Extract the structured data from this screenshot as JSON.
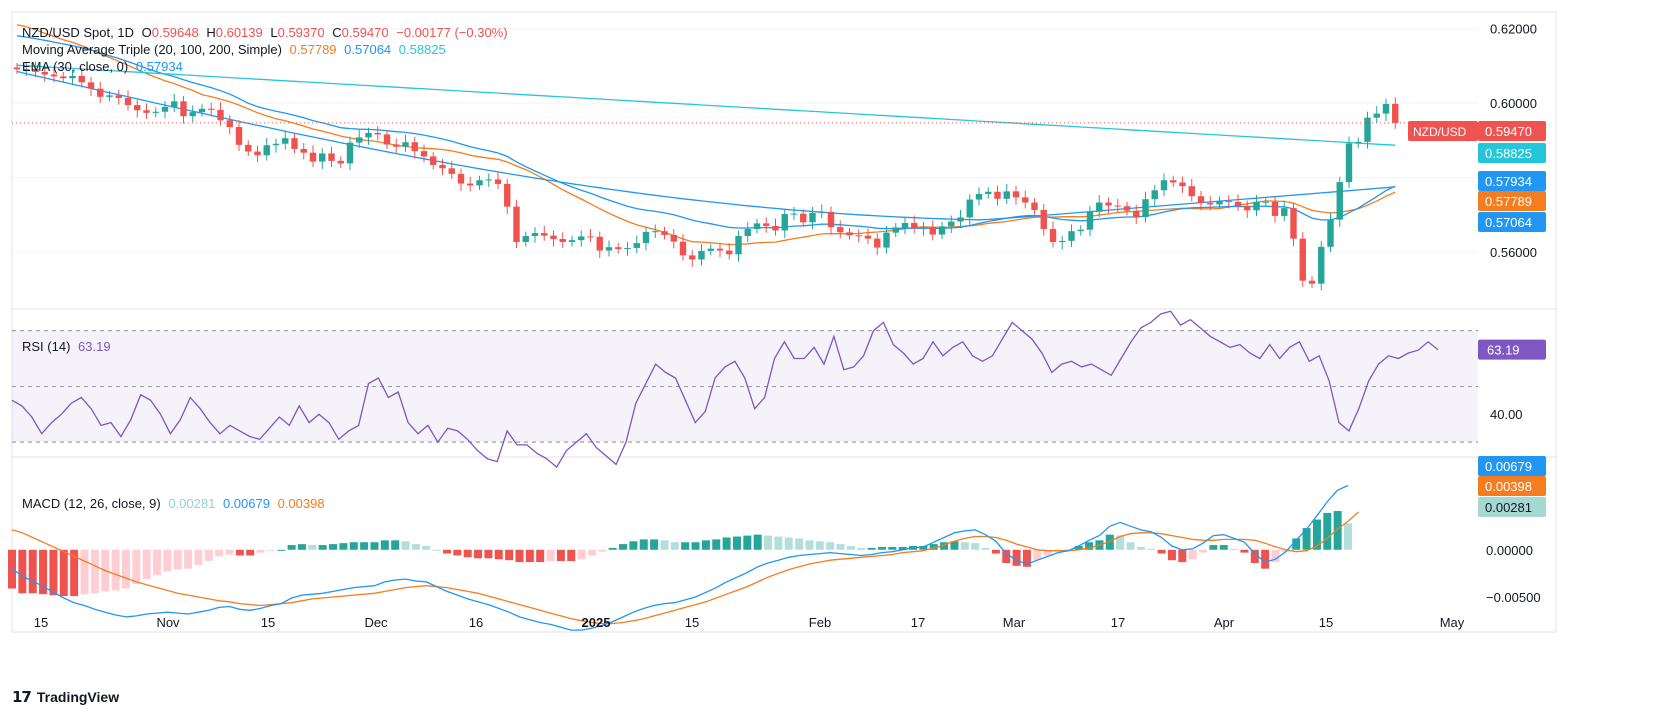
{
  "header": {
    "symbol": "NZD/USD Spot, 1D",
    "o_label": "O",
    "o_value": "0.59648",
    "h_label": "H",
    "h_value": "0.60139",
    "l_label": "L",
    "l_value": "0.59370",
    "c_label": "C",
    "c_value": "0.59470",
    "change": "−0.00177 (−0.30%)",
    "ma_label": "Moving Average Triple (20, 100, 200, Simple)",
    "ma20": "0.57789",
    "ma100": "0.57064",
    "ma200": "0.58825",
    "ema_label": "EMA (30, close, 0)",
    "ema": "0.57934"
  },
  "rsi_panel": {
    "label": "RSI (14)",
    "value": "63.19"
  },
  "macd_panel": {
    "label": "MACD (12, 26, close, 9)",
    "hist": "0.00281",
    "macd": "0.00679",
    "signal": "0.00398"
  },
  "brand": {
    "name": "TradingView"
  },
  "colors": {
    "up": "#26a69a",
    "down": "#ef5350",
    "ma20": "#f57c1f",
    "ma100": "#2196f3",
    "ma200": "#26c6da",
    "ema": "#2196f3",
    "rsi": "#7e57c2",
    "macd": "#2196f3",
    "signal": "#f57c1f"
  },
  "chart_data": [
    {
      "type": "candlestick",
      "title": "NZD/USD Spot, 1D",
      "x_tick_labels": [
        "15",
        "Nov",
        "15",
        "Dec",
        "16",
        "2025",
        "15",
        "Feb",
        "17",
        "Mar",
        "17",
        "Apr",
        "15",
        "May"
      ],
      "y_tick_labels": [
        "0.62000",
        "0.60000",
        "0.56000"
      ],
      "ylim": [
        0.5455,
        0.6245
      ],
      "price_tags": [
        {
          "name": "NZD/USD",
          "value": "0.59470",
          "price": 0.5947
        },
        {
          "name": "MA200",
          "value": "0.58825",
          "price": 0.58825
        },
        {
          "name": "EMA30",
          "value": "0.57934",
          "price": 0.57934
        },
        {
          "name": "MA20",
          "value": "0.57789",
          "price": 0.57789
        },
        {
          "name": "MA100",
          "value": "0.57064",
          "price": 0.57064
        }
      ],
      "closes": [
        0.6091,
        0.6092,
        0.6084,
        0.6077,
        0.6072,
        0.6067,
        0.6073,
        0.6056,
        0.6039,
        0.6017,
        0.6021,
        0.6014,
        0.5995,
        0.5981,
        0.5974,
        0.5977,
        0.599,
        0.6005,
        0.5965,
        0.5976,
        0.5985,
        0.5982,
        0.5954,
        0.5936,
        0.5888,
        0.587,
        0.586,
        0.5887,
        0.5891,
        0.5906,
        0.5877,
        0.5867,
        0.5843,
        0.5865,
        0.5845,
        0.5838,
        0.5894,
        0.5908,
        0.592,
        0.5916,
        0.5889,
        0.5883,
        0.5895,
        0.5871,
        0.5857,
        0.5834,
        0.5825,
        0.581,
        0.5784,
        0.5779,
        0.5793,
        0.5795,
        0.5783,
        0.5722,
        0.5627,
        0.5643,
        0.5651,
        0.5644,
        0.5635,
        0.5627,
        0.5632,
        0.5642,
        0.5641,
        0.5604,
        0.5613,
        0.5608,
        0.5611,
        0.5624,
        0.5654,
        0.5656,
        0.5646,
        0.5628,
        0.5591,
        0.558,
        0.5603,
        0.5609,
        0.5604,
        0.5594,
        0.5643,
        0.5662,
        0.5677,
        0.567,
        0.5658,
        0.5702,
        0.5703,
        0.568,
        0.5705,
        0.5708,
        0.5667,
        0.5653,
        0.5645,
        0.5644,
        0.5636,
        0.5612,
        0.5652,
        0.5666,
        0.5678,
        0.5664,
        0.5667,
        0.5647,
        0.5669,
        0.5682,
        0.5693,
        0.5741,
        0.5756,
        0.5762,
        0.5743,
        0.5763,
        0.5747,
        0.5733,
        0.5713,
        0.5662,
        0.5627,
        0.563,
        0.5656,
        0.566,
        0.5708,
        0.5733,
        0.5725,
        0.5723,
        0.5711,
        0.5694,
        0.5742,
        0.5766,
        0.5793,
        0.5787,
        0.5777,
        0.575,
        0.5732,
        0.5728,
        0.5737,
        0.5735,
        0.5724,
        0.5712,
        0.5735,
        0.5735,
        0.5697,
        0.5718,
        0.5636,
        0.5523,
        0.5515,
        0.5614,
        0.5687,
        0.5788,
        0.5892,
        0.5896,
        0.5961,
        0.5972,
        0.5998,
        0.5947
      ]
    },
    {
      "type": "line",
      "title": "RSI (14)",
      "y_tick_labels": [
        "40.00"
      ],
      "bands": [
        30,
        50,
        70
      ],
      "ylim": [
        25,
        76
      ],
      "values": [
        45,
        43,
        39,
        33,
        37,
        40,
        44,
        46,
        42,
        36,
        37,
        32,
        38,
        47,
        45,
        40,
        33,
        38,
        46,
        42,
        37,
        33,
        36,
        34,
        32,
        31,
        35,
        39,
        36,
        43,
        37,
        40,
        37,
        31,
        34,
        36,
        51,
        53,
        46,
        48,
        37,
        33,
        36,
        30,
        35,
        34,
        31,
        27,
        24,
        23,
        34,
        29,
        29,
        26,
        24,
        21,
        27,
        30,
        33,
        28,
        25,
        22,
        30,
        44,
        51,
        58,
        55,
        53,
        45,
        37,
        41,
        53,
        57,
        59,
        53,
        42,
        46,
        60,
        66,
        60,
        60,
        64,
        58,
        68,
        56,
        57,
        61,
        70,
        73,
        65,
        62,
        58,
        60,
        66,
        61,
        64,
        66,
        61,
        59,
        61,
        67,
        73,
        70,
        67,
        62,
        55,
        58,
        59,
        57,
        58,
        56,
        54,
        60,
        66,
        71,
        73,
        76,
        77,
        72,
        74,
        71,
        68,
        66,
        64,
        65,
        62,
        60,
        65,
        60,
        64,
        66,
        59,
        61,
        52,
        37,
        34,
        42,
        52,
        58,
        61,
        60,
        62,
        63,
        66,
        63.19
      ]
    },
    {
      "type": "bar+line",
      "title": "MACD (12, 26, close, 9)",
      "y_tick_labels": [
        "0.00000",
        "−0.00500"
      ],
      "ylim": [
        -0.0087,
        0.0095
      ],
      "macd": [
        -0.002,
        -0.0028,
        -0.0033,
        -0.0039,
        -0.0045,
        -0.0051,
        -0.0056,
        -0.0059,
        -0.0063,
        -0.0066,
        -0.0069,
        -0.0071,
        -0.007,
        -0.0068,
        -0.0067,
        -0.0066,
        -0.0067,
        -0.0068,
        -0.0066,
        -0.0064,
        -0.0061,
        -0.006,
        -0.0063,
        -0.0064,
        -0.0062,
        -0.0059,
        -0.0057,
        -0.0051,
        -0.0048,
        -0.0047,
        -0.0046,
        -0.0044,
        -0.0042,
        -0.004,
        -0.0039,
        -0.0038,
        -0.0034,
        -0.0032,
        -0.0031,
        -0.0033,
        -0.0034,
        -0.0039,
        -0.0044,
        -0.0048,
        -0.0052,
        -0.0055,
        -0.0058,
        -0.0062,
        -0.0066,
        -0.0071,
        -0.0074,
        -0.0077,
        -0.0079,
        -0.0082,
        -0.0085,
        -0.0085,
        -0.0083,
        -0.008,
        -0.0076,
        -0.0071,
        -0.0066,
        -0.0062,
        -0.0059,
        -0.0057,
        -0.0056,
        -0.0053,
        -0.005,
        -0.0045,
        -0.004,
        -0.0034,
        -0.0029,
        -0.0024,
        -0.0018,
        -0.0014,
        -0.0011,
        -0.0008,
        -0.0006,
        -0.0005,
        -0.0004,
        -0.0003,
        -0.0004,
        -0.0005,
        -0.0006,
        -0.0005,
        -0.0003,
        -0.0002,
        0.0,
        0.0002,
        0.0003,
        0.0008,
        0.0013,
        0.0018,
        0.002,
        0.0021,
        0.0016,
        0.0009,
        -0.0004,
        -0.0011,
        -0.0015,
        -0.0011,
        -0.0007,
        -0.0003,
        -0.0001,
        0.0004,
        0.001,
        0.0015,
        0.0025,
        0.0029,
        0.0025,
        0.0021,
        0.0019,
        0.0013,
        0.0004,
        0.0,
        0.0001,
        0.0007,
        0.0015,
        0.0016,
        0.0012,
        0.0008,
        -0.0004,
        -0.0013,
        -0.001,
        -0.0002,
        0.001,
        0.0022,
        0.0036,
        0.0051,
        0.0063,
        0.0068
      ],
      "signal": [
        0.0021,
        0.0018,
        0.0013,
        0.0008,
        0.0003,
        -0.0002,
        -0.0007,
        -0.0012,
        -0.0017,
        -0.0022,
        -0.0026,
        -0.003,
        -0.0034,
        -0.0037,
        -0.004,
        -0.0043,
        -0.0046,
        -0.0048,
        -0.005,
        -0.0052,
        -0.0054,
        -0.0055,
        -0.0057,
        -0.0058,
        -0.0059,
        -0.0058,
        -0.0057,
        -0.0056,
        -0.0054,
        -0.0052,
        -0.0051,
        -0.005,
        -0.0049,
        -0.0048,
        -0.0047,
        -0.0046,
        -0.0044,
        -0.0042,
        -0.004,
        -0.0039,
        -0.0038,
        -0.0039,
        -0.004,
        -0.0042,
        -0.0044,
        -0.0046,
        -0.0049,
        -0.0052,
        -0.0055,
        -0.0058,
        -0.0061,
        -0.0064,
        -0.0067,
        -0.007,
        -0.0073,
        -0.0075,
        -0.0077,
        -0.0078,
        -0.0078,
        -0.0077,
        -0.0075,
        -0.0073,
        -0.007,
        -0.0067,
        -0.0064,
        -0.0061,
        -0.0058,
        -0.0055,
        -0.0051,
        -0.0047,
        -0.0043,
        -0.0039,
        -0.0034,
        -0.0029,
        -0.0025,
        -0.0021,
        -0.0018,
        -0.0015,
        -0.0013,
        -0.0011,
        -0.001,
        -0.0009,
        -0.0008,
        -0.0007,
        -0.0006,
        -0.0005,
        -0.0003,
        -0.0002,
        -0.0001,
        0.0002,
        0.0005,
        0.0009,
        0.0012,
        0.0014,
        0.0014,
        0.0013,
        0.001,
        0.0006,
        0.0003,
        0.0,
        -0.0001,
        -0.0001,
        -0.0001,
        0.0,
        0.0002,
        0.0005,
        0.0009,
        0.0014,
        0.0017,
        0.0018,
        0.0018,
        0.0017,
        0.0015,
        0.0013,
        0.0011,
        0.001,
        0.001,
        0.0011,
        0.0011,
        0.0011,
        0.001,
        0.0007,
        0.0003,
        0.0,
        -0.0002,
        -0.0001,
        0.0004,
        0.0012,
        0.0022,
        0.003,
        0.004
      ],
      "histogram": [
        -0.0041,
        -0.0046,
        -0.0046,
        -0.0047,
        -0.0048,
        -0.0049,
        -0.0049,
        -0.0047,
        -0.0046,
        -0.0044,
        -0.0043,
        -0.0041,
        -0.0036,
        -0.0031,
        -0.0027,
        -0.0023,
        -0.0021,
        -0.002,
        -0.0016,
        -0.0012,
        -0.0007,
        -0.0005,
        -0.0006,
        -0.0006,
        -0.0003,
        -0.0001,
        0.0,
        0.0005,
        0.0006,
        0.0005,
        0.0005,
        0.0006,
        0.0007,
        0.0008,
        0.0008,
        0.0008,
        0.001,
        0.001,
        0.0009,
        0.0006,
        0.0004,
        0.0,
        -0.0004,
        -0.0006,
        -0.0008,
        -0.0009,
        -0.0009,
        -0.001,
        -0.0011,
        -0.0013,
        -0.0013,
        -0.0013,
        -0.0012,
        -0.0012,
        -0.0012,
        -0.001,
        -0.0006,
        -0.0002,
        0.0002,
        0.0006,
        0.0009,
        0.0011,
        0.0011,
        0.001,
        0.0008,
        0.0008,
        0.0008,
        0.001,
        0.0011,
        0.0013,
        0.0014,
        0.0015,
        0.0016,
        0.0015,
        0.0014,
        0.0013,
        0.0012,
        0.001,
        0.0009,
        0.0008,
        0.0006,
        0.0004,
        0.0002,
        0.0002,
        0.0003,
        0.0003,
        0.0003,
        0.0004,
        0.0004,
        0.0006,
        0.0008,
        0.0009,
        0.0008,
        0.0007,
        0.0002,
        -0.0004,
        -0.0014,
        -0.0017,
        -0.0018,
        -0.0011,
        -0.0006,
        -0.0002,
        0.0,
        0.0004,
        0.0008,
        0.001,
        0.0016,
        0.0015,
        0.0008,
        0.0003,
        0.0001,
        -0.0004,
        -0.0011,
        -0.0013,
        -0.001,
        -0.0003,
        0.0005,
        0.0005,
        0.0001,
        -0.0003,
        -0.0014,
        -0.002,
        -0.0013,
        -0.0002,
        0.0012,
        0.0023,
        0.0032,
        0.0039,
        0.0041,
        0.0028
      ]
    }
  ]
}
